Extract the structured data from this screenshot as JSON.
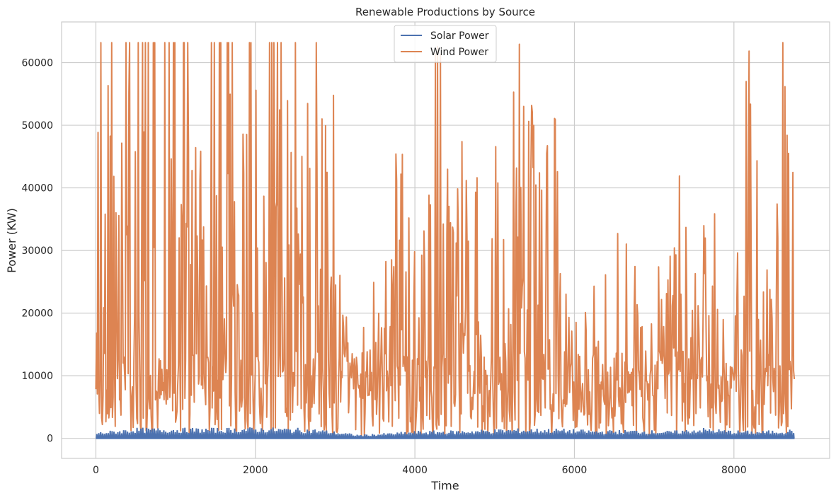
{
  "chart_data": {
    "type": "line",
    "title": "Renewable Productions by Source",
    "xlabel": "Time",
    "ylabel": "Power (KW)",
    "xlim": [
      -430,
      9200
    ],
    "ylim": [
      -3200,
      66500
    ],
    "xticks": [
      0,
      2000,
      4000,
      6000,
      8000
    ],
    "xtick_labels": [
      "0",
      "2000",
      "4000",
      "6000",
      "8000"
    ],
    "yticks": [
      0,
      10000,
      20000,
      30000,
      40000,
      50000,
      60000
    ],
    "ytick_labels": [
      "0",
      "10000",
      "20000",
      "30000",
      "40000",
      "50000",
      "60000"
    ],
    "grid": true,
    "legend_position": "top-center",
    "series": [
      {
        "name": "Solar Power",
        "color": "#4c72b0",
        "x": [
          0,
          8760
        ],
        "y": [
          0,
          0
        ],
        "note_range": [
          0,
          1800
        ],
        "envelope": [
          [
            0,
            1000
          ],
          [
            500,
            1700
          ],
          [
            1000,
            1700
          ],
          [
            1500,
            1700
          ],
          [
            2000,
            1800
          ],
          [
            2500,
            1700
          ],
          [
            2800,
            1500
          ],
          [
            3300,
            600
          ],
          [
            3700,
            900
          ],
          [
            4000,
            1200
          ],
          [
            4500,
            1300
          ],
          [
            5000,
            1500
          ],
          [
            5300,
            1600
          ],
          [
            5800,
            1600
          ],
          [
            6300,
            1300
          ],
          [
            6800,
            1400
          ],
          [
            7200,
            1200
          ],
          [
            7600,
            1700
          ],
          [
            8000,
            1300
          ],
          [
            8300,
            1200
          ],
          [
            8760,
            1500
          ]
        ]
      },
      {
        "name": "Wind Power",
        "color": "#dd8452",
        "x": [
          0,
          50,
          100,
          200,
          300,
          400,
          500,
          600,
          700,
          800,
          900,
          1000,
          1100,
          1200,
          1300,
          1400,
          1500,
          1600,
          1700,
          1800,
          1900,
          2000,
          2100,
          2200,
          2300,
          2400,
          2500,
          2600,
          2700,
          2800,
          2900,
          3000,
          3070,
          3100,
          3200,
          3300,
          3400,
          3500,
          3600,
          3700,
          3800,
          3870,
          3900,
          4000,
          4100,
          4200,
          4300,
          4400,
          4500,
          4600,
          4700,
          4800,
          4900,
          5000,
          5100,
          5200,
          5270,
          5300,
          5400,
          5500,
          5600,
          5700,
          5800,
          5900,
          6000,
          6100,
          6200,
          6300,
          6400,
          6500,
          6600,
          6700,
          6800,
          6900,
          7000,
          7100,
          7200,
          7300,
          7400,
          7500,
          7600,
          7700,
          7760,
          7800,
          7900,
          8000,
          8100,
          8200,
          8300,
          8400,
          8500,
          8600,
          8700,
          8760
        ],
        "y": [
          32000,
          63200,
          63200,
          63200,
          63200,
          63200,
          63200,
          63200,
          63200,
          63200,
          63200,
          63200,
          63200,
          63200,
          63200,
          63200,
          63200,
          63200,
          63200,
          63200,
          63200,
          63200,
          63200,
          63200,
          63200,
          63200,
          63200,
          63200,
          63200,
          63200,
          63200,
          63200,
          63200,
          21000,
          17000,
          14000,
          20500,
          25800,
          29500,
          26000,
          57300,
          54200,
          37000,
          29500,
          29200,
          59300,
          63200,
          53800,
          34800,
          48800,
          31500,
          44300,
          27500,
          47000,
          43900,
          45900,
          63200,
          63200,
          60600,
          48800,
          38500,
          52000,
          50200,
          24500,
          34200,
          15000,
          39500,
          15500,
          27300,
          12500,
          59500,
          25500,
          28800,
          13000,
          35500,
          21000,
          34000,
          52600,
          33300,
          24500,
          36500,
          25500,
          60000,
          17000,
          20000,
          12500,
          49700,
          63200,
          42000,
          28200,
          19500,
          63200,
          63200,
          63200
        ]
      }
    ]
  }
}
